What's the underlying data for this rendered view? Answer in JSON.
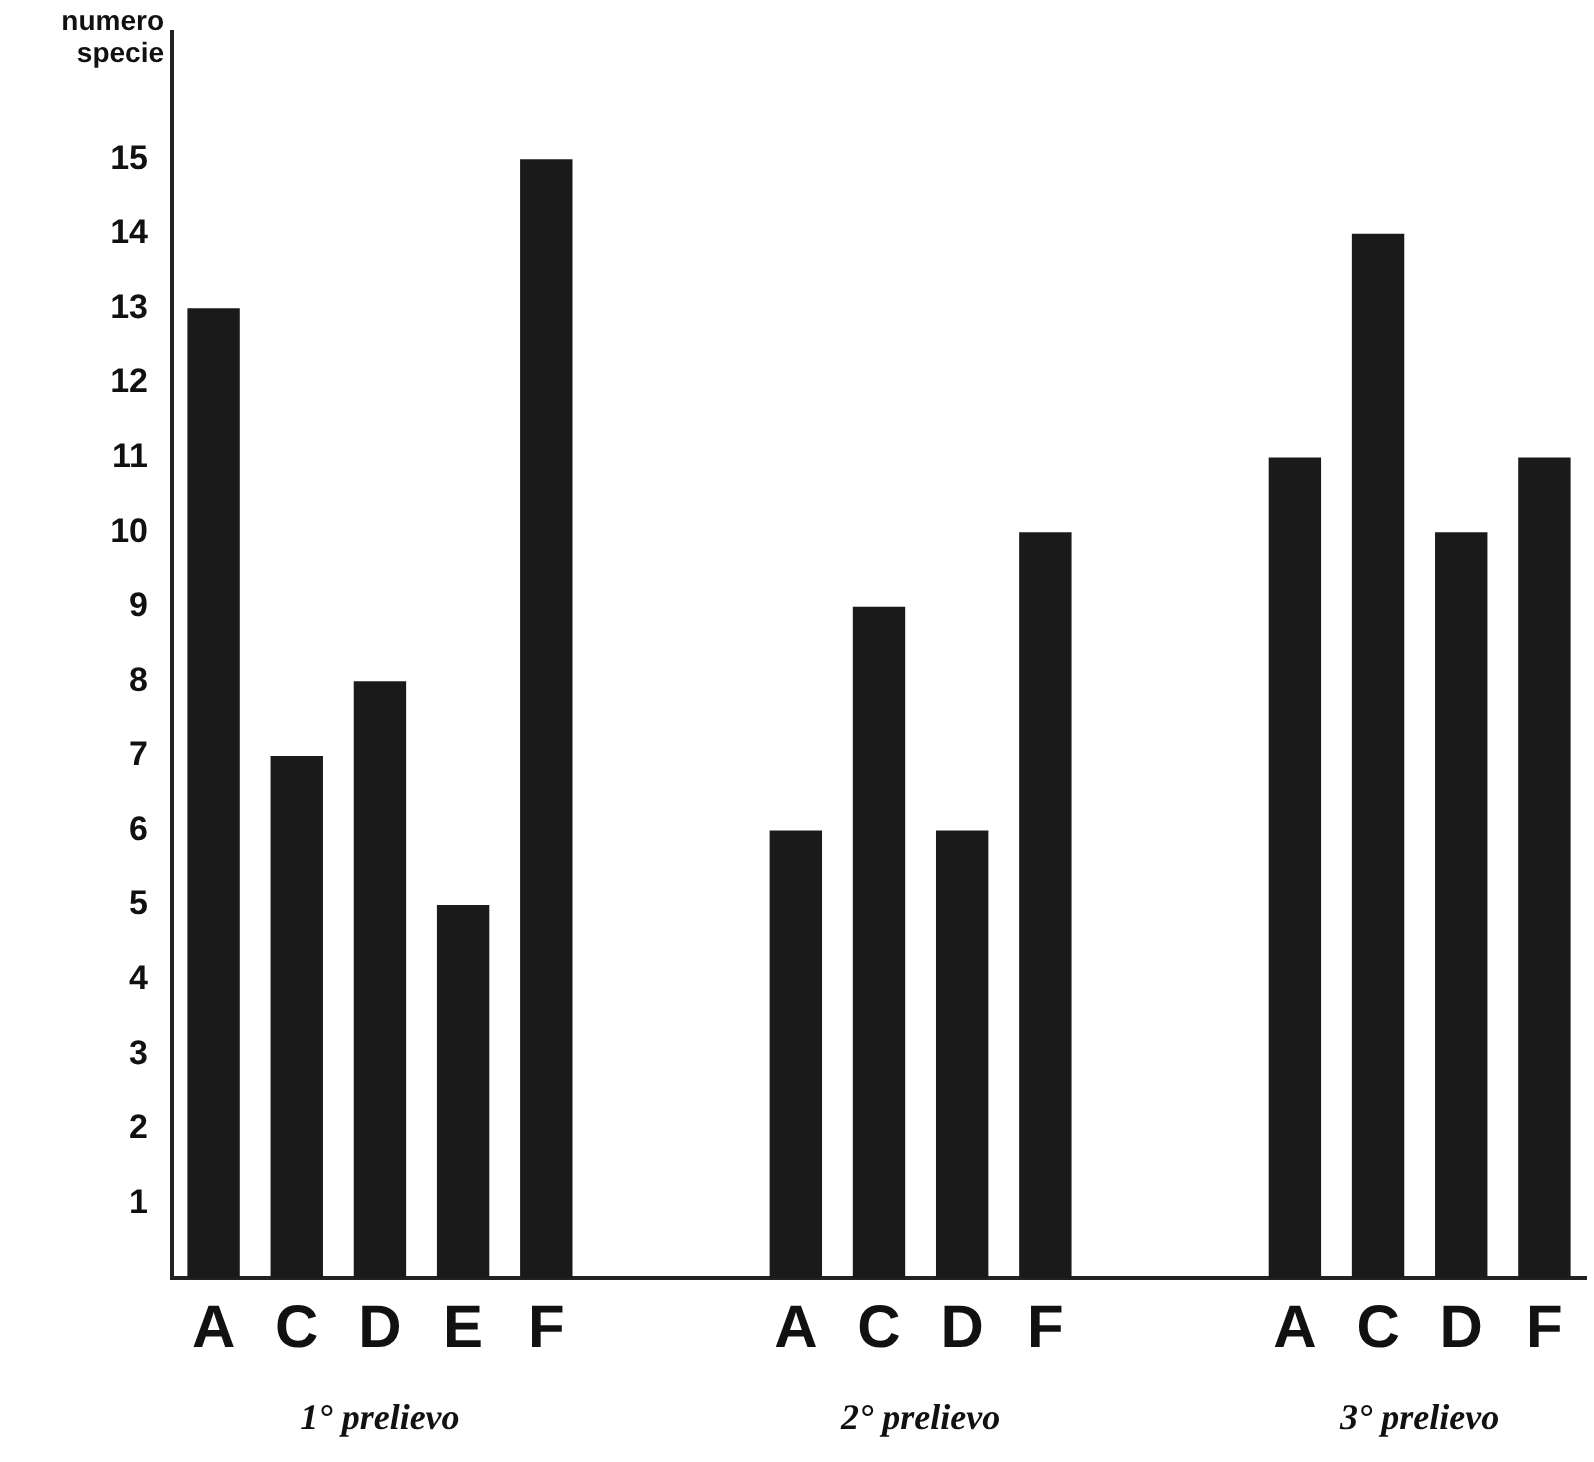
{
  "chart_data": {
    "type": "bar",
    "ylabel": "numero specie",
    "categories": [
      "A",
      "C",
      "D",
      "E",
      "F",
      null,
      null,
      "A",
      "C",
      "D",
      "F",
      null,
      null,
      "A",
      "C",
      "D",
      "F"
    ],
    "values": [
      13,
      7,
      8,
      5,
      15,
      null,
      null,
      6,
      9,
      6,
      10,
      null,
      null,
      11,
      14,
      10,
      11
    ],
    "color": "#1a1a1a",
    "ylim": [
      0,
      16.7
    ],
    "yticks": [
      1,
      2,
      3,
      4,
      5,
      6,
      7,
      8,
      9,
      10,
      11,
      12,
      13,
      14,
      15
    ],
    "grid": false,
    "legend": false,
    "annotations": [
      "1° prelievo",
      "2° prelievo",
      "3° prelievo"
    ]
  }
}
